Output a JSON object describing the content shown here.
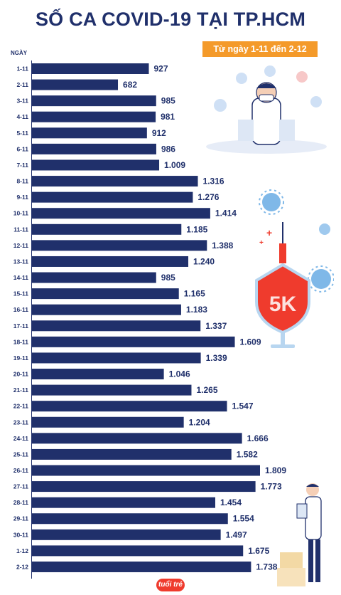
{
  "header": {
    "title": "SỐ CA COVID-19 TẠI TP.HCM",
    "subtitle": "Từ ngày 1-11 đến 2-12"
  },
  "brand": {
    "logo_text": "tuổi trẻ",
    "accent": "#f49a2a",
    "bar_color": "#20306b"
  },
  "icons": [
    "doctor-illustration",
    "vaccine-5k-shield-illustration",
    "virus-icon",
    "doctor-with-clipboard-illustration"
  ],
  "chart_data": {
    "type": "bar",
    "orientation": "horizontal",
    "title": "SỐ CA COVID-19 TẠI TP.HCM",
    "subtitle": "Từ ngày 1-11 đến 2-12",
    "ylabel": "NGÀY",
    "xlabel": "",
    "categories": [
      "1-11",
      "2-11",
      "3-11",
      "4-11",
      "5-11",
      "6-11",
      "7-11",
      "8-11",
      "9-11",
      "10-11",
      "11-11",
      "12-11",
      "13-11",
      "14-11",
      "15-11",
      "16-11",
      "17-11",
      "18-11",
      "19-11",
      "20-11",
      "21-11",
      "22-11",
      "23-11",
      "24-11",
      "25-11",
      "26-11",
      "27-11",
      "28-11",
      "29-11",
      "30-11",
      "1-12",
      "2-12"
    ],
    "values": [
      927,
      682,
      985,
      981,
      912,
      986,
      1009,
      1316,
      1276,
      1414,
      1185,
      1388,
      1240,
      985,
      1165,
      1183,
      1337,
      1609,
      1339,
      1046,
      1265,
      1547,
      1204,
      1666,
      1582,
      1809,
      1773,
      1454,
      1554,
      1497,
      1675,
      1738
    ],
    "value_labels": [
      "927",
      "682",
      "985",
      "981",
      "912",
      "986",
      "1.009",
      "1.316",
      "1.276",
      "1.414",
      "1.185",
      "1.388",
      "1.240",
      "985",
      "1.165",
      "1.183",
      "1.337",
      "1.609",
      "1.339",
      "1.046",
      "1.265",
      "1.547",
      "1.204",
      "1.666",
      "1.582",
      "1.809",
      "1.773",
      "1.454",
      "1.554",
      "1.497",
      "1.675",
      "1.738"
    ],
    "xlim": [
      0,
      1809
    ],
    "grid": false,
    "legend": "none"
  }
}
